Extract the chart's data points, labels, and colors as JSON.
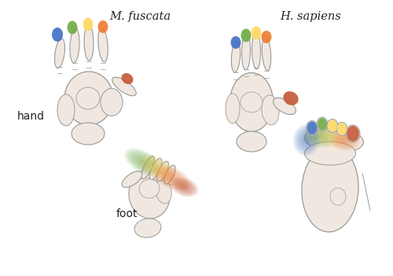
{
  "title_left": "M. fuscata",
  "title_right": "H. sapiens",
  "label_hand": "hand",
  "label_foot": "foot",
  "bg_color": "#ffffff",
  "skin_color": "#f0e8e0",
  "outline_color": "#999999",
  "finger_colors": {
    "blue": "#4472c4",
    "green": "#70ad47",
    "yellow": "#ffd966",
    "orange": "#ed7d31",
    "red": "#c55a3a"
  },
  "title_fontsize": 10.5,
  "label_fontsize": 10,
  "figsize": [
    5.0,
    3.51
  ],
  "dpi": 100,
  "xlim": [
    0,
    500
  ],
  "ylim": [
    0,
    351
  ]
}
